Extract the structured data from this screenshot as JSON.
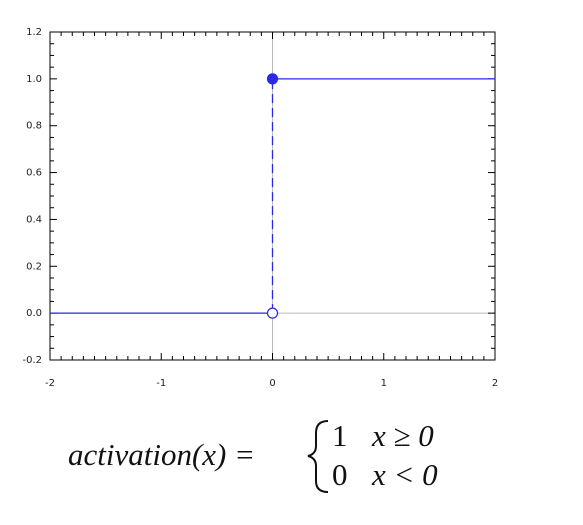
{
  "chart_data": {
    "type": "line",
    "x": [
      -2,
      0,
      0,
      2
    ],
    "values": [
      0,
      0,
      1,
      1
    ],
    "color": "#2a2ae6",
    "xlim": [
      -2,
      2
    ],
    "xticks": [
      -2,
      -1,
      0,
      1,
      2
    ],
    "ylim": [
      -0.2,
      1.2
    ],
    "yticks": [
      -0.2,
      {
        "value": 0,
        "label": "0.0"
      },
      0.2,
      0.4,
      0.6,
      0.8,
      {
        "value": 1,
        "label": "1.0"
      },
      1.2
    ],
    "x_minor_divisions": 10,
    "y_minor_divisions": 4,
    "formula": {
      "lhs": "activation(x) =",
      "cases": [
        {
          "value": "1",
          "condition": "x ≥ 0"
        },
        {
          "value": "0",
          "condition": "x < 0"
        }
      ]
    }
  }
}
